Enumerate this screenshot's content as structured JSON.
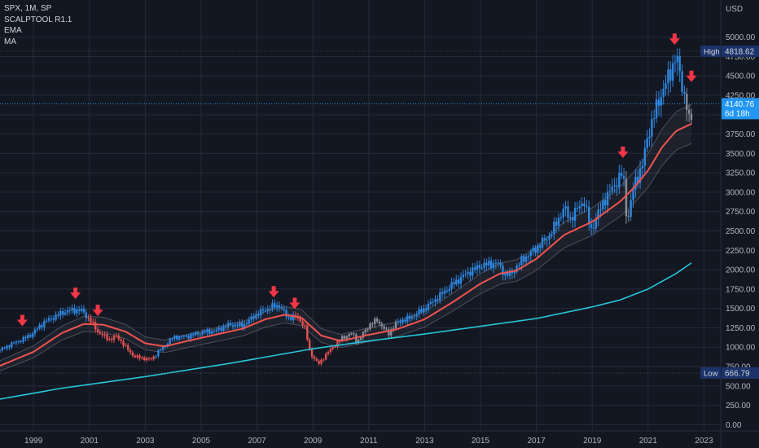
{
  "chart_data": {
    "type": "candlestick",
    "title": "SPX, 1M, SP",
    "indicators": [
      "SCALPTOOL R1.1",
      "EMA",
      "MA"
    ],
    "currency": "USD",
    "y_ticks": [
      0,
      250,
      500,
      750,
      1000,
      1250,
      1500,
      1750,
      2000,
      2250,
      2500,
      2750,
      3000,
      3250,
      3500,
      3750,
      4000,
      4250,
      4500,
      4750,
      5000
    ],
    "y_tick_labels": [
      "0.00",
      "250.00",
      "500.00",
      "750.00",
      "1000.00",
      "1250.00",
      "1500.00",
      "1750.00",
      "2000.00",
      "2250.00",
      "2500.00",
      "2750.00",
      "3000.00",
      "3250.00",
      "3500.00",
      "3750.00",
      "4000.00",
      "4250.00",
      "4500.00",
      "4750.00",
      "5000.00"
    ],
    "ylim": [
      -80,
      5480
    ],
    "x_range": [
      1997.8,
      2023.6
    ],
    "x_ticks": [
      1999,
      2001,
      2003,
      2005,
      2007,
      2009,
      2011,
      2013,
      2015,
      2017,
      2019,
      2021,
      2023
    ],
    "x_tick_labels": [
      "1999",
      "2001",
      "2003",
      "2005",
      "2007",
      "2009",
      "2011",
      "2013",
      "2015",
      "2017",
      "2019",
      "2021",
      "2023"
    ],
    "high": {
      "label": "High",
      "value": 4818.62,
      "value_label": "4818.62"
    },
    "low": {
      "label": "Low",
      "value": 666.79,
      "value_label": "666.79"
    },
    "last": {
      "value": 4140.76,
      "value_label": "4140.76",
      "countdown": "6d 18h"
    },
    "price_anchors": [
      [
        1997.8,
        960
      ],
      [
        1998.2,
        1040
      ],
      [
        1998.6,
        1100
      ],
      [
        1998.9,
        1160
      ],
      [
        1999.4,
        1330
      ],
      [
        1999.9,
        1420
      ],
      [
        2000.2,
        1470
      ],
      [
        2000.7,
        1480
      ],
      [
        2001.0,
        1360
      ],
      [
        2001.3,
        1200
      ],
      [
        2001.7,
        1100
      ],
      [
        2002.0,
        1140
      ],
      [
        2002.3,
        1000
      ],
      [
        2002.6,
        880
      ],
      [
        2002.9,
        860
      ],
      [
        2003.2,
        840
      ],
      [
        2003.6,
        990
      ],
      [
        2004.0,
        1130
      ],
      [
        2004.5,
        1140
      ],
      [
        2005.0,
        1190
      ],
      [
        2005.5,
        1210
      ],
      [
        2006.0,
        1290
      ],
      [
        2006.5,
        1280
      ],
      [
        2007.0,
        1430
      ],
      [
        2007.5,
        1520
      ],
      [
        2007.8,
        1540
      ],
      [
        2008.1,
        1380
      ],
      [
        2008.4,
        1400
      ],
      [
        2008.7,
        1280
      ],
      [
        2008.9,
        930
      ],
      [
        2009.2,
        780
      ],
      [
        2009.5,
        920
      ],
      [
        2010.0,
        1110
      ],
      [
        2010.4,
        1180
      ],
      [
        2010.6,
        1070
      ],
      [
        2011.0,
        1280
      ],
      [
        2011.3,
        1350
      ],
      [
        2011.7,
        1170
      ],
      [
        2012.0,
        1320
      ],
      [
        2012.5,
        1380
      ],
      [
        2013.0,
        1500
      ],
      [
        2013.5,
        1650
      ],
      [
        2014.0,
        1810
      ],
      [
        2014.5,
        1950
      ],
      [
        2015.0,
        2050
      ],
      [
        2015.6,
        2090
      ],
      [
        2015.9,
        1930
      ],
      [
        2016.1,
        1950
      ],
      [
        2016.5,
        2130
      ],
      [
        2017.0,
        2280
      ],
      [
        2017.5,
        2450
      ],
      [
        2018.0,
        2800
      ],
      [
        2018.2,
        2650
      ],
      [
        2018.7,
        2900
      ],
      [
        2018.95,
        2500
      ],
      [
        2019.4,
        2880
      ],
      [
        2019.9,
        3150
      ],
      [
        2020.1,
        3260
      ],
      [
        2020.25,
        2600
      ],
      [
        2020.5,
        3100
      ],
      [
        2020.8,
        3350
      ],
      [
        2021.0,
        3750
      ],
      [
        2021.4,
        4200
      ],
      [
        2021.8,
        4550
      ],
      [
        2022.0,
        4770
      ],
      [
        2022.2,
        4400
      ],
      [
        2022.4,
        4100
      ],
      [
        2022.5,
        3800
      ],
      [
        2022.6,
        4140
      ]
    ],
    "ema_anchors": [
      [
        1997.8,
        760
      ],
      [
        1999.0,
        940
      ],
      [
        2000.0,
        1180
      ],
      [
        2000.8,
        1300
      ],
      [
        2001.5,
        1290
      ],
      [
        2002.3,
        1200
      ],
      [
        2003.0,
        1050
      ],
      [
        2003.7,
        1010
      ],
      [
        2004.5,
        1080
      ],
      [
        2005.5,
        1160
      ],
      [
        2006.5,
        1240
      ],
      [
        2007.3,
        1360
      ],
      [
        2008.0,
        1420
      ],
      [
        2008.6,
        1380
      ],
      [
        2009.3,
        1150
      ],
      [
        2010.0,
        1080
      ],
      [
        2011.0,
        1160
      ],
      [
        2012.0,
        1230
      ],
      [
        2013.0,
        1360
      ],
      [
        2014.0,
        1580
      ],
      [
        2015.0,
        1820
      ],
      [
        2015.7,
        1950
      ],
      [
        2016.3,
        1990
      ],
      [
        2017.0,
        2140
      ],
      [
        2018.0,
        2450
      ],
      [
        2019.0,
        2620
      ],
      [
        2020.0,
        2880
      ],
      [
        2020.5,
        3060
      ],
      [
        2021.0,
        3280
      ],
      [
        2021.5,
        3580
      ],
      [
        2022.0,
        3790
      ],
      [
        2022.6,
        3890
      ]
    ],
    "ma_anchors": [
      [
        1997.8,
        330
      ],
      [
        2000.0,
        470
      ],
      [
        2003.0,
        620
      ],
      [
        2006.0,
        790
      ],
      [
        2009.0,
        980
      ],
      [
        2011.0,
        1080
      ],
      [
        2013.0,
        1170
      ],
      [
        2015.0,
        1270
      ],
      [
        2017.0,
        1370
      ],
      [
        2019.0,
        1520
      ],
      [
        2020.0,
        1610
      ],
      [
        2021.0,
        1750
      ],
      [
        2022.0,
        1950
      ],
      [
        2022.6,
        2100
      ]
    ],
    "bearish_periods": [
      [
        2000.9,
        2003.3
      ],
      [
        2008.3,
        2009.9
      ]
    ],
    "gray_periods": [
      [
        2009.9,
        2012.0
      ],
      [
        2020.15,
        2020.35
      ],
      [
        2022.3,
        2022.6
      ]
    ],
    "arrows": [
      {
        "x": 1998.6,
        "value": 1250
      },
      {
        "x": 2000.5,
        "value": 1600
      },
      {
        "x": 2001.3,
        "value": 1380
      },
      {
        "x": 2007.6,
        "value": 1620
      },
      {
        "x": 2008.35,
        "value": 1470
      },
      {
        "x": 2020.1,
        "value": 3420
      },
      {
        "x": 2021.95,
        "value": 4880
      },
      {
        "x": 2022.55,
        "value": 4400
      }
    ],
    "colors": {
      "background": "#131722",
      "grid": "#262a36",
      "candle_up": "#2e86de",
      "candle_down": "#e05252",
      "candle_neutral": "#8a8e99",
      "ema": "#ef5350",
      "ma": "#26c6da",
      "band": "#4c505c",
      "arrow": "#f23645",
      "price_label_bg": "#2196f3",
      "extreme_label_bg": "#1c3369",
      "axis_text": "#b2b5be"
    }
  }
}
